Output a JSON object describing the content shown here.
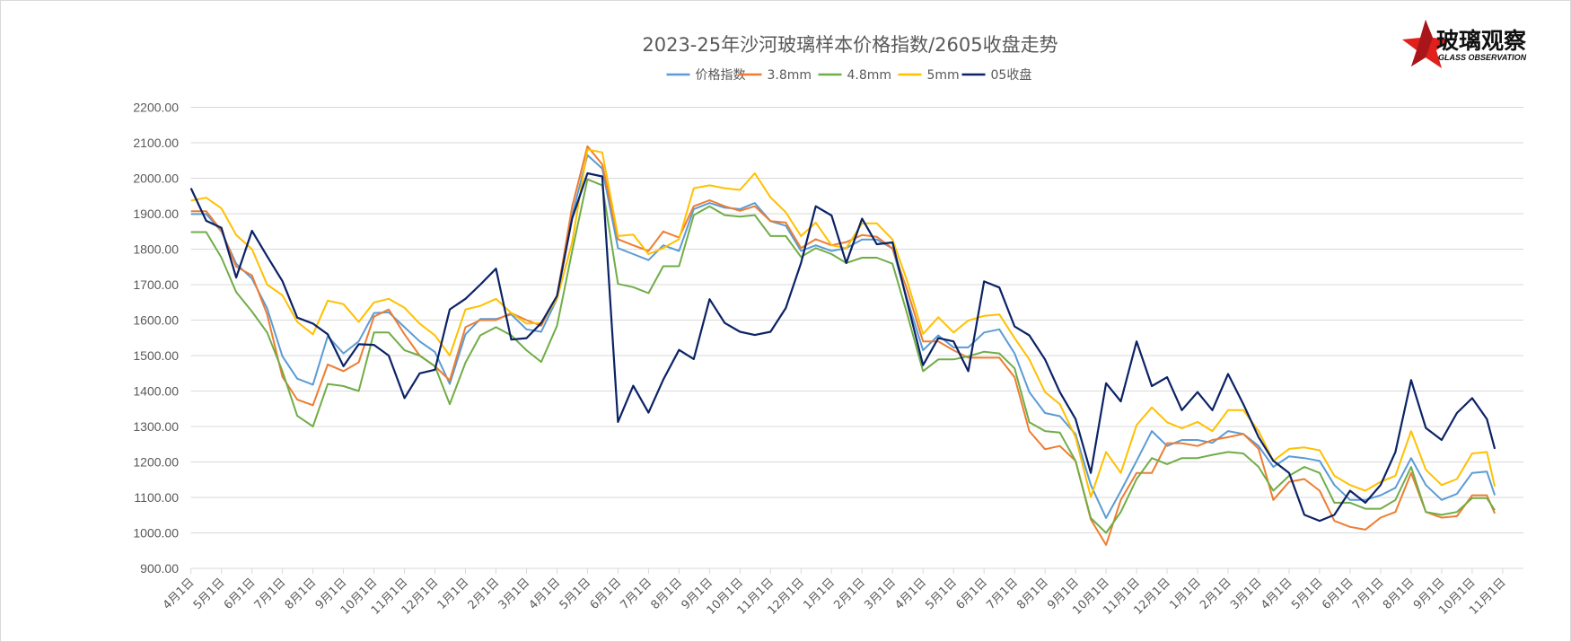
{
  "chart_data": {
    "type": "line",
    "title": "2023-25年沙河玻璃样本价格指数/2605收盘走势",
    "ylim": [
      900,
      2200
    ],
    "y_ticks": [
      "900.00",
      "1000.00",
      "1100.00",
      "1200.00",
      "1300.00",
      "1400.00",
      "1500.00",
      "1600.00",
      "1700.00",
      "1800.00",
      "1900.00",
      "2000.00",
      "2100.00",
      "2200.00"
    ],
    "x_tick_labels": [
      "4月1日",
      "5月1日",
      "6月1日",
      "7月1日",
      "8月1日",
      "9月1日",
      "10月1日",
      "11月1日",
      "12月1日",
      "1月1日",
      "2月1日",
      "3月1日",
      "4月1日",
      "5月1日",
      "6月1日",
      "7月1日",
      "8月1日",
      "9月1日",
      "10月1日",
      "11月1日",
      "12月1日",
      "1月1日",
      "2月1日",
      "3月1日",
      "4月1日",
      "5月1日",
      "6月1日",
      "7月1日",
      "8月1日",
      "9月1日",
      "10月1日",
      "11月1日",
      "12月1日",
      "1月1日",
      "2月1日",
      "3月1日",
      "4月1日",
      "5月1日",
      "6月1日",
      "7月1日",
      "8月1日",
      "9月1日",
      "10月1日",
      "11月1日"
    ],
    "grid": "horizontal",
    "legend_position": "top",
    "x": [
      "2022-04-01",
      "2022-04-16",
      "2022-05-01",
      "2022-05-16",
      "2022-06-01",
      "2022-06-16",
      "2022-07-01",
      "2022-07-16",
      "2022-08-01",
      "2022-08-16",
      "2022-09-01",
      "2022-09-16",
      "2022-10-01",
      "2022-10-16",
      "2022-11-01",
      "2022-11-16",
      "2022-12-01",
      "2022-12-16",
      "2023-01-01",
      "2023-01-16",
      "2023-02-01",
      "2023-02-15",
      "2023-03-01",
      "2023-03-16",
      "2023-04-01",
      "2023-04-16",
      "2023-05-01",
      "2023-05-16",
      "2023-06-01",
      "2023-06-16",
      "2023-07-01",
      "2023-07-16",
      "2023-08-01",
      "2023-08-16",
      "2023-09-01",
      "2023-09-16",
      "2023-10-01",
      "2023-10-16",
      "2023-11-01",
      "2023-11-16",
      "2023-12-01",
      "2023-12-16",
      "2024-01-01",
      "2024-01-16",
      "2024-02-01",
      "2024-02-15",
      "2024-03-01",
      "2024-03-16",
      "2024-04-01",
      "2024-04-16",
      "2024-05-01",
      "2024-05-16",
      "2024-06-01",
      "2024-06-16",
      "2024-07-01",
      "2024-07-16",
      "2024-08-01",
      "2024-08-16",
      "2024-09-01",
      "2024-09-16",
      "2024-10-01",
      "2024-10-16",
      "2024-11-01",
      "2024-11-16",
      "2024-12-01",
      "2024-12-16",
      "2025-01-01",
      "2025-01-16",
      "2025-02-01",
      "2025-02-15",
      "2025-03-01",
      "2025-03-16",
      "2025-04-01",
      "2025-04-16",
      "2025-05-01",
      "2025-05-16",
      "2025-06-01",
      "2025-06-16",
      "2025-07-01",
      "2025-07-16",
      "2025-08-01",
      "2025-08-16",
      "2025-09-01",
      "2025-09-16",
      "2025-10-01",
      "2025-10-16",
      "2025-10-24"
    ],
    "series": [
      {
        "name": "价格指数",
        "color": "#5B9BD5",
        "values": [
          1899,
          1899,
          1850,
          1759,
          1717,
          1633,
          1498,
          1435,
          1418,
          1555,
          1506,
          1540,
          1620,
          1622,
          1580,
          1540,
          1510,
          1420,
          1560,
          1603,
          1603,
          1616,
          1574,
          1567,
          1660,
          1896,
          2065,
          2027,
          1803,
          1786,
          1769,
          1811,
          1795,
          1913,
          1930,
          1917,
          1913,
          1930,
          1879,
          1866,
          1795,
          1811,
          1795,
          1803,
          1827,
          1827,
          1802,
          1658,
          1515,
          1557,
          1523,
          1523,
          1565,
          1574,
          1506,
          1397,
          1338,
          1329,
          1278,
          1135,
          1042,
          1118,
          1203,
          1287,
          1245,
          1262,
          1262,
          1254,
          1287,
          1279,
          1245,
          1186,
          1216,
          1211,
          1203,
          1135,
          1093,
          1093,
          1106,
          1127,
          1211,
          1135,
          1093,
          1110,
          1169,
          1173,
          1106
        ]
      },
      {
        "name": "3.8mm",
        "color": "#ED7D31",
        "values": [
          1907,
          1907,
          1852,
          1751,
          1726,
          1616,
          1440,
          1376,
          1360,
          1475,
          1456,
          1481,
          1610,
          1630,
          1560,
          1500,
          1470,
          1430,
          1580,
          1600,
          1600,
          1620,
          1600,
          1584,
          1668,
          1921,
          2090,
          2039,
          1828,
          1811,
          1795,
          1850,
          1833,
          1921,
          1938,
          1921,
          1908,
          1921,
          1879,
          1875,
          1803,
          1828,
          1811,
          1820,
          1840,
          1835,
          1802,
          1684,
          1540,
          1540,
          1515,
          1494,
          1494,
          1494,
          1439,
          1287,
          1236,
          1245,
          1203,
          1038,
          966,
          1093,
          1169,
          1169,
          1253,
          1253,
          1245,
          1262,
          1270,
          1279,
          1237,
          1093,
          1144,
          1152,
          1119,
          1034,
          1017,
          1009,
          1043,
          1059,
          1169,
          1059,
          1043,
          1047,
          1106,
          1106,
          1055
        ]
      },
      {
        "name": "4.8mm",
        "color": "#70AD47",
        "values": [
          1848,
          1848,
          1776,
          1679,
          1624,
          1565,
          1456,
          1330,
          1300,
          1420,
          1414,
          1400,
          1565,
          1565,
          1515,
          1500,
          1470,
          1363,
          1480,
          1557,
          1580,
          1557,
          1515,
          1482,
          1584,
          1795,
          1997,
          1980,
          1702,
          1693,
          1676,
          1752,
          1752,
          1896,
          1921,
          1896,
          1892,
          1896,
          1837,
          1837,
          1778,
          1803,
          1786,
          1761,
          1776,
          1776,
          1759,
          1616,
          1456,
          1489,
          1489,
          1498,
          1511,
          1506,
          1464,
          1312,
          1287,
          1283,
          1203,
          1042,
          1000,
          1059,
          1152,
          1211,
          1194,
          1211,
          1211,
          1220,
          1228,
          1224,
          1186,
          1119,
          1161,
          1186,
          1169,
          1085,
          1085,
          1068,
          1068,
          1093,
          1186,
          1059,
          1051,
          1059,
          1098,
          1098,
          1064
        ]
      },
      {
        "name": "5mm",
        "color": "#FFC000",
        "values": [
          1937,
          1945,
          1915,
          1840,
          1800,
          1700,
          1670,
          1595,
          1560,
          1655,
          1645,
          1595,
          1650,
          1660,
          1635,
          1590,
          1557,
          1500,
          1630,
          1640,
          1660,
          1620,
          1590,
          1592,
          1660,
          1820,
          2081,
          2073,
          1837,
          1841,
          1786,
          1803,
          1828,
          1972,
          1980,
          1972,
          1967,
          2014,
          1946,
          1904,
          1837,
          1875,
          1811,
          1803,
          1873,
          1873,
          1827,
          1709,
          1561,
          1608,
          1565,
          1599,
          1612,
          1616,
          1549,
          1489,
          1397,
          1363,
          1270,
          1101,
          1228,
          1169,
          1304,
          1354,
          1312,
          1295,
          1313,
          1287,
          1346,
          1346,
          1287,
          1203,
          1237,
          1241,
          1233,
          1161,
          1135,
          1119,
          1144,
          1161,
          1287,
          1178,
          1135,
          1152,
          1224,
          1228,
          1131
        ]
      },
      {
        "name": "05收盘",
        "color": "#0B2265",
        "values": [
          1972,
          1880,
          1860,
          1720,
          1852,
          1780,
          1710,
          1607,
          1590,
          1560,
          1470,
          1532,
          1530,
          1500,
          1380,
          1450,
          1460,
          1630,
          1660,
          1700,
          1745,
          1545,
          1549,
          1592,
          1668,
          1887,
          2014,
          2005,
          1313,
          1415,
          1339,
          1432,
          1516,
          1490,
          1659,
          1592,
          1567,
          1558,
          1567,
          1634,
          1761,
          1921,
          1895,
          1761,
          1886,
          1814,
          1819,
          1650,
          1473,
          1549,
          1540,
          1456,
          1709,
          1692,
          1582,
          1557,
          1489,
          1397,
          1321,
          1169,
          1422,
          1371,
          1540,
          1414,
          1439,
          1346,
          1397,
          1346,
          1448,
          1363,
          1270,
          1203,
          1169,
          1051,
          1034,
          1051,
          1119,
          1085,
          1135,
          1228,
          1431,
          1296,
          1262,
          1338,
          1380,
          1321,
          1237
        ]
      }
    ]
  },
  "logo": {
    "text_cn": "玻璃观察",
    "text_en": "GLASS OBSERVATION",
    "color": "#E0201B"
  },
  "grid_color": "#D9D9D9"
}
